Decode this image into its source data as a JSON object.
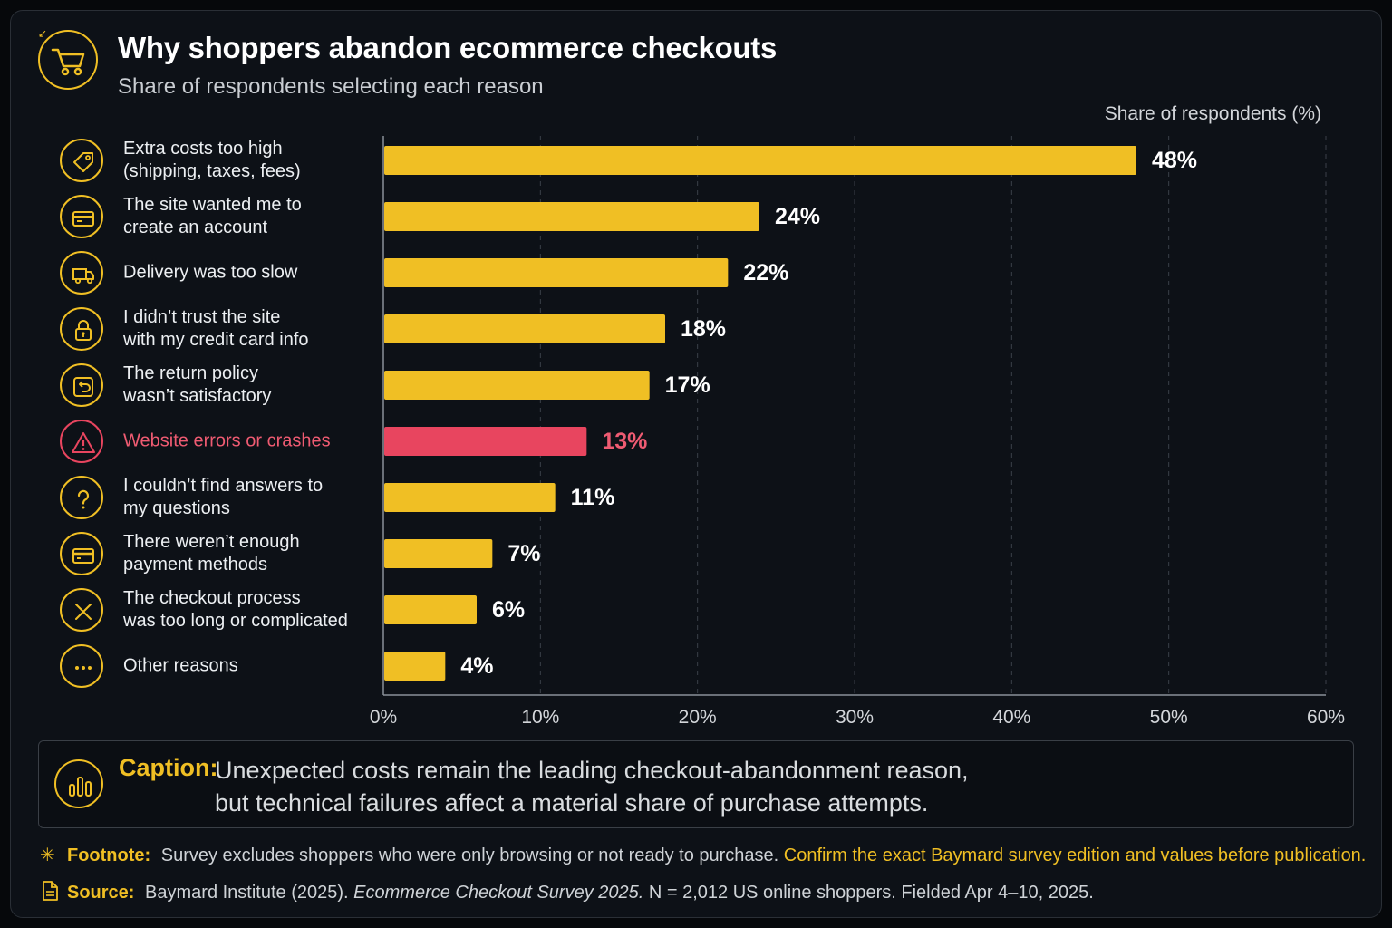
{
  "header": {
    "title": "Why shoppers abandon ecommerce checkouts",
    "subtitle": "Share of respondents selecting each reason"
  },
  "chart_data": {
    "type": "bar",
    "orientation": "horizontal",
    "xlabel": "Share of respondents (%)",
    "xlim": [
      0,
      60
    ],
    "xticks": [
      0,
      10,
      20,
      30,
      40,
      50,
      60
    ],
    "xtick_labels": [
      "0%",
      "10%",
      "20%",
      "30%",
      "40%",
      "50%",
      "60%"
    ],
    "grid": "vertical dashed",
    "categories": [
      "Extra costs too high (shipping, taxes, fees)",
      "The site wanted me to create an account",
      "Delivery was too slow",
      "I didn’t trust the site with my credit card info",
      "The return policy wasn’t satisfactory",
      "Website errors or crashes",
      "I couldn’t find answers to my questions",
      "There weren’t enough payment methods",
      "The checkout process was too long or complicated",
      "Other reasons"
    ],
    "values": [
      48,
      24,
      22,
      18,
      17,
      13,
      11,
      7,
      6,
      4
    ],
    "value_labels": [
      "48%",
      "24%",
      "22%",
      "18%",
      "17%",
      "13%",
      "11%",
      "7%",
      "6%",
      "4%"
    ],
    "highlight_index": 5,
    "colors": {
      "bar": "#f0bf24",
      "highlight": "#e8455f",
      "grid": "#3a4048",
      "axis": "#8a9099"
    }
  },
  "rows": [
    {
      "line1": "Extra costs too high",
      "line2": "(shipping, taxes, fees)",
      "icon": "price-tag-icon"
    },
    {
      "line1": "The site wanted me to",
      "line2": "create an account",
      "icon": "card-icon"
    },
    {
      "line1": "Delivery was too slow",
      "line2": "",
      "icon": "delivery-truck-icon"
    },
    {
      "line1": "I didn’t trust the site",
      "line2": "with my credit card info",
      "icon": "padlock-icon"
    },
    {
      "line1": "The return policy",
      "line2": "wasn’t satisfactory",
      "icon": "return-icon"
    },
    {
      "line1": "Website errors or crashes",
      "line2": "",
      "icon": "warning-icon"
    },
    {
      "line1": "I couldn’t find answers to",
      "line2": "my questions",
      "icon": "question-icon"
    },
    {
      "line1": "There weren’t enough",
      "line2": "payment methods",
      "icon": "credit-card-icon"
    },
    {
      "line1": "The checkout process",
      "line2": "was too long or complicated",
      "icon": "x-circle-icon"
    },
    {
      "line1": "Other reasons",
      "line2": "",
      "icon": "ellipsis-icon"
    }
  ],
  "caption": {
    "label": "Caption:",
    "line1": "Unexpected costs remain the leading checkout-abandonment reason,",
    "line2": "but technical failures affect a material share of purchase attempts."
  },
  "footnote": {
    "label": "Footnote:",
    "text": "Survey excludes shoppers who were only browsing or not ready to purchase.",
    "highlight": "Confirm the exact Baymard survey edition and values before publication."
  },
  "source": {
    "label": "Source:",
    "text_before": "Baymard Institute (2025).",
    "title_italic": "Ecommerce Checkout Survey 2025.",
    "text_after": "N = 2,012 US online shoppers. Fielded Apr 4–10, 2025."
  }
}
